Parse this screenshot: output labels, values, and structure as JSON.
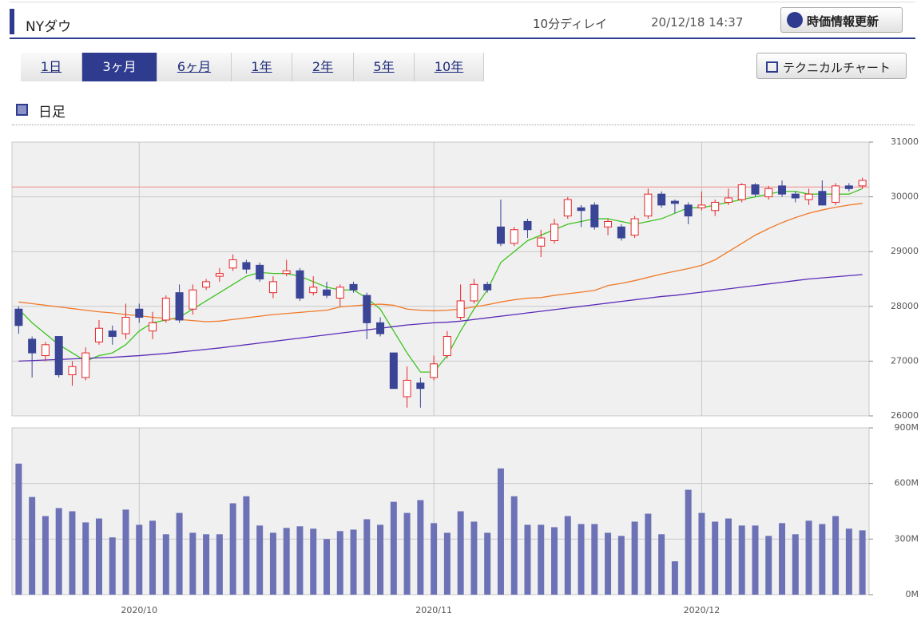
{
  "header": {
    "title": "NYダウ",
    "delay": "10分ディレイ",
    "timestamp": "20/12/18 14:37",
    "refresh_button": "時価情報更新"
  },
  "tabs": [
    "1日",
    "3ヶ月",
    "6ヶ月",
    "1年",
    "2年",
    "5年",
    "10年"
  ],
  "active_tab": 1,
  "technical_button": "テクニカルチャート",
  "section_label": "日足",
  "chart_data": [
    {
      "type": "candlestick",
      "up_color": "#e8262a",
      "down_color": "#3a4596",
      "open": [
        27950,
        27400,
        27100,
        27450,
        26750,
        26700,
        27350,
        27550,
        27500,
        27950,
        27550,
        27750,
        28250,
        27950,
        28350,
        28550,
        28700,
        28800,
        28750,
        28250,
        28600,
        28650,
        28250,
        28300,
        28150,
        28400,
        28200,
        27700,
        27150,
        26350,
        26600,
        26700,
        27100,
        27800,
        28100,
        28400,
        29450,
        29150,
        29550,
        29100,
        29200,
        29650,
        29800,
        29850,
        29450,
        29450,
        29300,
        29650,
        30050,
        29920,
        29850,
        29800,
        29750,
        29900,
        29950,
        30220,
        30000,
        30200,
        30050,
        29950,
        30100,
        29900,
        30200,
        30200
      ],
      "high": [
        28000,
        27450,
        27350,
        27450,
        27000,
        27250,
        27750,
        27650,
        28050,
        28050,
        27900,
        28200,
        28400,
        28400,
        28500,
        28700,
        28950,
        28850,
        28800,
        28550,
        28850,
        28700,
        28550,
        28450,
        28400,
        28450,
        28250,
        27800,
        27150,
        26900,
        26700,
        27100,
        27550,
        28400,
        28500,
        28450,
        29950,
        29450,
        29600,
        29400,
        29600,
        30000,
        29850,
        29900,
        29600,
        29500,
        29650,
        30150,
        30100,
        29950,
        29900,
        30100,
        29950,
        30150,
        30250,
        30250,
        30200,
        30300,
        30100,
        30150,
        30300,
        30250,
        30250,
        30350
      ],
      "low": [
        27500,
        26700,
        27000,
        26700,
        26550,
        26650,
        27300,
        27300,
        27400,
        27700,
        27400,
        27700,
        27700,
        27850,
        28300,
        28450,
        28650,
        28600,
        28450,
        28150,
        28550,
        28100,
        28200,
        28150,
        28000,
        28250,
        27400,
        27450,
        26500,
        26150,
        26150,
        26650,
        27050,
        27750,
        28050,
        28250,
        29100,
        29100,
        29250,
        28900,
        29150,
        29600,
        29450,
        29400,
        29300,
        29200,
        29250,
        29600,
        29800,
        29700,
        29500,
        29750,
        29650,
        29850,
        29900,
        30000,
        29950,
        30000,
        29900,
        29850,
        29850,
        29850,
        30100,
        30150
      ],
      "close": [
        27650,
        27150,
        27300,
        26750,
        26900,
        27150,
        27600,
        27450,
        27800,
        27800,
        27700,
        28150,
        27750,
        28300,
        28450,
        28600,
        28850,
        28680,
        28500,
        28450,
        28650,
        28150,
        28350,
        28200,
        28350,
        28300,
        27700,
        27500,
        26500,
        26650,
        26500,
        26950,
        27450,
        28100,
        28400,
        28300,
        29150,
        29400,
        29400,
        29250,
        29500,
        29950,
        29750,
        29450,
        29550,
        29250,
        29600,
        30050,
        29850,
        29880,
        29650,
        29850,
        29900,
        29980,
        30220,
        30050,
        30150,
        30050,
        29980,
        30050,
        29850,
        30200,
        30150,
        30300
      ],
      "series": [
        {
          "color": "#3ec41f",
          "values": [
            27950,
            27700,
            27500,
            27300,
            27150,
            27000,
            27100,
            27150,
            27300,
            27550,
            27700,
            27750,
            27800,
            27950,
            28100,
            28250,
            28400,
            28550,
            28620,
            28600,
            28600,
            28550,
            28450,
            28350,
            28300,
            28300,
            28150,
            27950,
            27550,
            27150,
            26800,
            26800,
            27100,
            27550,
            27950,
            28300,
            28800,
            29000,
            29200,
            29300,
            29400,
            29500,
            29550,
            29600,
            29600,
            29550,
            29500,
            29550,
            29600,
            29700,
            29800,
            29800,
            29850,
            29900,
            29950,
            30000,
            30050,
            30100,
            30100,
            30050,
            30050,
            30050,
            30050,
            30150
          ]
        },
        {
          "color": "#f07a2a",
          "values": [
            28080,
            28050,
            28020,
            27990,
            27960,
            27930,
            27900,
            27880,
            27850,
            27830,
            27800,
            27780,
            27760,
            27740,
            27720,
            27730,
            27760,
            27790,
            27820,
            27850,
            27870,
            27890,
            27910,
            27930,
            27990,
            28010,
            28030,
            28040,
            28020,
            27950,
            27930,
            27920,
            27930,
            27950,
            27990,
            28030,
            28080,
            28120,
            28150,
            28160,
            28200,
            28230,
            28260,
            28290,
            28380,
            28420,
            28470,
            28530,
            28590,
            28640,
            28690,
            28750,
            28850,
            29000,
            29150,
            29300,
            29420,
            29530,
            29620,
            29700,
            29760,
            29810,
            29850,
            29880
          ]
        },
        {
          "color": "#5a2bb8",
          "values": [
            27000,
            27010,
            27020,
            27030,
            27040,
            27050,
            27060,
            27070,
            27085,
            27100,
            27120,
            27140,
            27165,
            27190,
            27215,
            27240,
            27270,
            27300,
            27330,
            27360,
            27390,
            27420,
            27450,
            27480,
            27510,
            27540,
            27570,
            27600,
            27630,
            27660,
            27680,
            27700,
            27710,
            27730,
            27760,
            27790,
            27820,
            27850,
            27880,
            27910,
            27940,
            27970,
            28000,
            28030,
            28060,
            28090,
            28120,
            28150,
            28180,
            28200,
            28230,
            28260,
            28290,
            28320,
            28350,
            28380,
            28410,
            28440,
            28470,
            28500,
            28520,
            28540,
            28560,
            28580
          ]
        }
      ],
      "reference_line": 30180,
      "reference_color": "#f08a8a",
      "ylim": [
        26000,
        31000
      ],
      "yticks": [
        26000,
        27000,
        28000,
        29000,
        30000,
        31000
      ],
      "grid": true
    },
    {
      "type": "bar",
      "color": "#6d72b6",
      "categories": [
        null,
        null,
        null,
        null,
        null,
        null,
        null,
        null,
        null,
        "2020/10",
        null,
        null,
        null,
        null,
        null,
        null,
        null,
        null,
        null,
        null,
        null,
        null,
        null,
        null,
        null,
        null,
        null,
        null,
        null,
        null,
        null,
        "2020/11",
        null,
        null,
        null,
        null,
        null,
        null,
        null,
        null,
        null,
        null,
        null,
        null,
        null,
        null,
        null,
        null,
        null,
        null,
        null,
        "2020/12",
        null,
        null,
        null,
        null,
        null,
        null,
        null,
        null,
        null,
        null,
        null,
        null
      ],
      "values": [
        707000000,
        527000000,
        424000000,
        467000000,
        450000000,
        390000000,
        411000000,
        309000000,
        459000000,
        377000000,
        399000000,
        326000000,
        441000000,
        334000000,
        326000000,
        326000000,
        493000000,
        531000000,
        373000000,
        334000000,
        360000000,
        369000000,
        356000000,
        300000000,
        343000000,
        351000000,
        407000000,
        377000000,
        501000000,
        441000000,
        510000000,
        386000000,
        334000000,
        450000000,
        394000000,
        334000000,
        681000000,
        531000000,
        377000000,
        377000000,
        364000000,
        424000000,
        381000000,
        381000000,
        334000000,
        317000000,
        394000000,
        437000000,
        326000000,
        180000000,
        566000000,
        441000000,
        394000000,
        411000000,
        373000000,
        373000000,
        317000000,
        386000000,
        326000000,
        399000000,
        381000000,
        424000000,
        356000000,
        347000000
      ],
      "ylim": [
        0,
        900000000
      ],
      "yticks": [
        {
          "value": 0,
          "label": "0M"
        },
        {
          "value": 300000000,
          "label": "300M"
        },
        {
          "value": 600000000,
          "label": "600M"
        },
        {
          "value": 900000000,
          "label": "900M"
        }
      ],
      "grid": true
    }
  ]
}
